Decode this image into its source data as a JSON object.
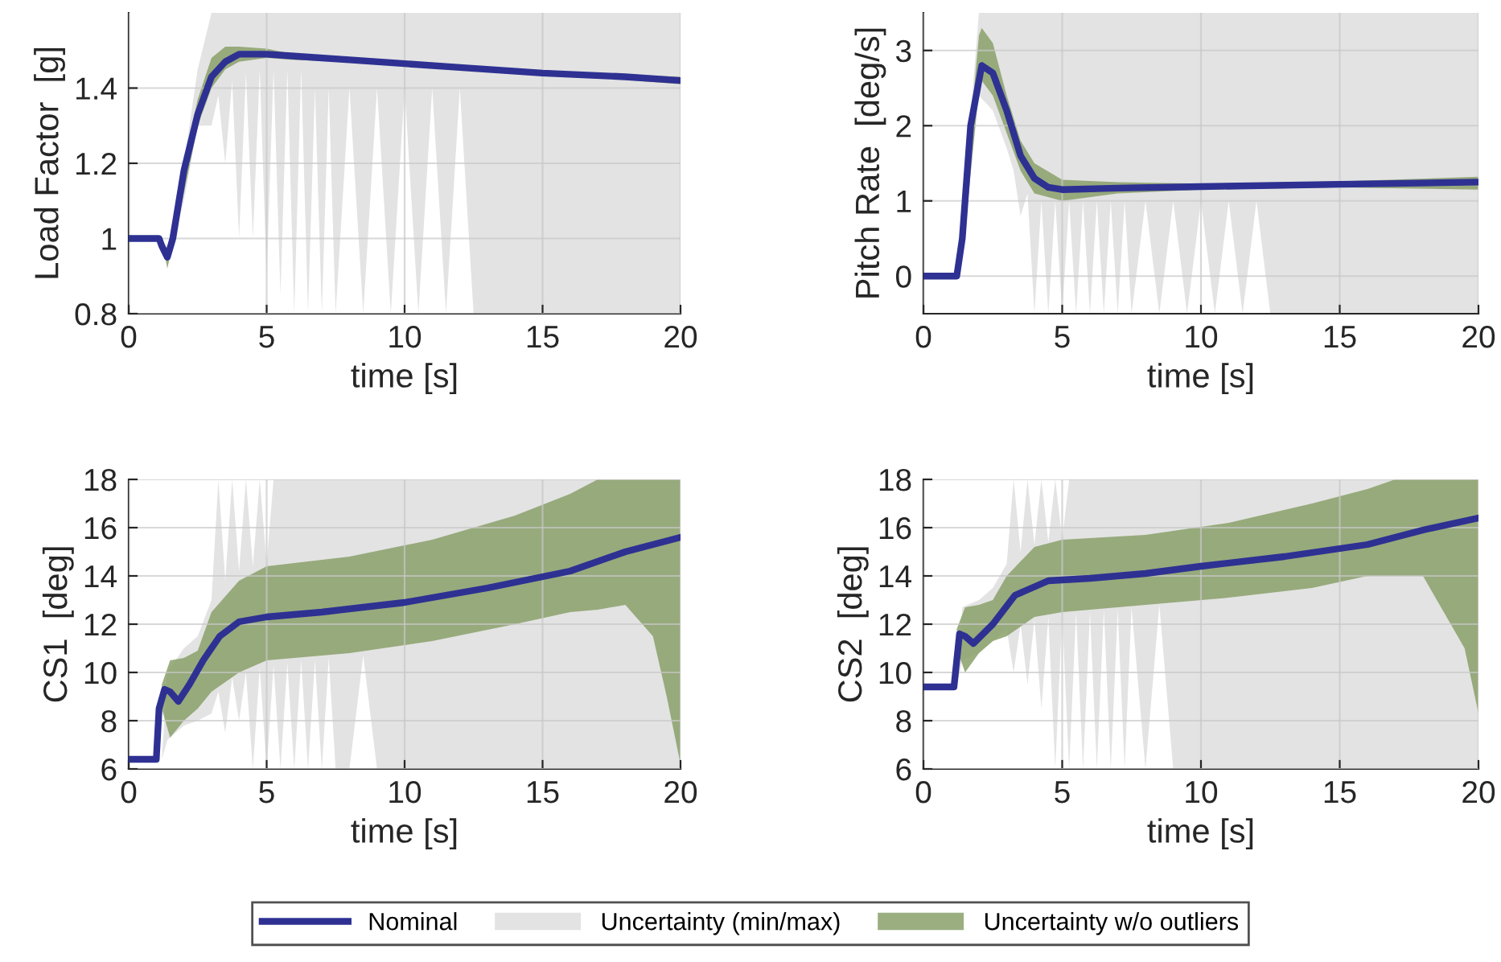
{
  "chart_data": [
    {
      "type": "line",
      "xlabel": "time [s]",
      "ylabel": "Load Factor  [g]",
      "xlim": [
        0,
        20
      ],
      "xticks": [
        0,
        5,
        10,
        15,
        20
      ],
      "ylim": [
        0.8,
        1.6
      ],
      "yticks": [
        0.8,
        1,
        1.2,
        1.4
      ],
      "grid": true,
      "legend": "bottom",
      "series": [
        {
          "name": "Nominal",
          "type": "line",
          "color": "#2e3192",
          "x": [
            0,
            1.1,
            1.2,
            1.4,
            1.6,
            2,
            2.5,
            3,
            3.5,
            4,
            5,
            6,
            8,
            10,
            12,
            15,
            18,
            20
          ],
          "values": [
            1,
            1,
            0.98,
            0.95,
            1.0,
            1.18,
            1.33,
            1.43,
            1.47,
            1.49,
            1.49,
            1.485,
            1.475,
            1.465,
            1.455,
            1.44,
            1.43,
            1.42
          ]
        },
        {
          "name": "Uncertainty (min/max)",
          "type": "line",
          "color": "#e3e3e3",
          "x": [
            0,
            1.2,
            1.4,
            2,
            2.5,
            3,
            3.25,
            3.5,
            3.75,
            4,
            4.25,
            4.5,
            4.75,
            5,
            5.25,
            5.5,
            5.75,
            6,
            6.25,
            6.5,
            6.75,
            7,
            7.25,
            7.5,
            8,
            8.5,
            9,
            9.5,
            10,
            10.5,
            11,
            11.5,
            12,
            12.5,
            13,
            14,
            20
          ],
          "values": [
            null,
            null,
            null,
            null,
            null,
            null,
            null,
            null,
            null,
            null,
            null,
            null,
            null,
            null,
            null,
            null,
            null,
            null,
            null,
            null,
            null,
            null,
            null,
            null,
            null,
            null,
            null,
            null,
            null,
            null,
            null,
            null,
            null,
            null,
            null,
            null,
            null
          ],
          "lower": [
            1,
            1,
            0.93,
            1.1,
            1.3,
            1.3,
            1.38,
            1.2,
            1.42,
            1.0,
            1.44,
            1.0,
            1.45,
            0.9,
            1.45,
            0.85,
            1.45,
            0.8,
            1.45,
            0.8,
            1.4,
            0.8,
            1.4,
            0.8,
            1.4,
            0.8,
            1.4,
            0.8,
            1.4,
            0.8,
            1.4,
            0.8,
            1.4,
            0.8,
            0.8,
            0.8,
            0.8
          ],
          "upper": [
            1,
            1,
            0.97,
            1.2,
            1.45,
            1.6,
            1.6,
            1.6,
            1.6,
            1.6,
            1.6,
            1.6,
            1.6,
            1.6,
            1.6,
            1.6,
            1.6,
            1.6,
            1.6,
            1.6,
            1.6,
            1.6,
            1.6,
            1.6,
            1.6,
            1.6,
            1.6,
            1.6,
            1.6,
            1.6,
            1.6,
            1.6,
            1.6,
            1.6,
            1.6,
            1.6,
            1.6
          ]
        },
        {
          "name": "Uncertainty w/o outliers",
          "type": "line",
          "color": "#8aa06a",
          "x": [
            0,
            1.2,
            1.4,
            2,
            2.5,
            3,
            3.5,
            4,
            5,
            6,
            8,
            10,
            15,
            20
          ],
          "values": [
            null,
            null,
            null,
            null,
            null,
            null,
            null,
            null,
            null,
            null,
            null,
            null,
            null,
            null
          ],
          "lower": [
            1,
            1,
            0.92,
            1.12,
            1.3,
            1.4,
            1.45,
            1.47,
            1.48,
            1.475,
            1.47,
            1.46,
            1.44,
            1.41
          ],
          "upper": [
            1,
            1,
            0.97,
            1.2,
            1.37,
            1.48,
            1.51,
            1.51,
            1.505,
            1.49,
            1.48,
            1.47,
            1.445,
            1.43
          ]
        }
      ]
    },
    {
      "type": "line",
      "xlabel": "time [s]",
      "ylabel": "Pitch Rate  [deg/s]",
      "xlim": [
        0,
        20
      ],
      "xticks": [
        0,
        5,
        10,
        15,
        20
      ],
      "ylim": [
        -0.5,
        3.5
      ],
      "yticks": [
        0,
        1,
        2,
        3
      ],
      "grid": true,
      "series": [
        {
          "type": "line",
          "color": "#2e3192",
          "x": [
            0,
            1.2,
            1.4,
            1.7,
            2.1,
            2.5,
            3,
            3.5,
            4,
            4.5,
            5,
            7,
            10,
            15,
            20
          ],
          "values": [
            0,
            0,
            0.5,
            2.0,
            2.8,
            2.7,
            2.2,
            1.6,
            1.3,
            1.18,
            1.15,
            1.17,
            1.19,
            1.22,
            1.25
          ]
        },
        {
          "type": "line",
          "color": "#e3e3e3",
          "x": [
            0,
            1.2,
            1.4,
            2,
            2.5,
            3,
            3.25,
            3.5,
            3.75,
            4,
            4.25,
            4.5,
            4.75,
            5,
            5.25,
            5.5,
            5.75,
            6,
            6.25,
            6.5,
            6.75,
            7,
            7.25,
            7.5,
            8,
            8.5,
            9,
            9.5,
            10,
            10.5,
            11,
            11.5,
            12,
            12.5,
            13,
            14,
            20
          ],
          "values": [
            null,
            null,
            null,
            null,
            null,
            null,
            null,
            null,
            null,
            null,
            null,
            null,
            null,
            null,
            null,
            null,
            null,
            null,
            null,
            null,
            null,
            null,
            null,
            null,
            null,
            null,
            null,
            null,
            null,
            null,
            null,
            null,
            null,
            null,
            null,
            null,
            null
          ],
          "lower": [
            0,
            0,
            0.3,
            2.4,
            2.2,
            1.7,
            1.4,
            0.8,
            1.1,
            -0.5,
            1.0,
            -0.5,
            1.0,
            -0.5,
            1.0,
            -0.5,
            1.0,
            -0.5,
            1.0,
            -0.5,
            1.0,
            -0.5,
            1.0,
            -0.5,
            1.0,
            -0.5,
            1.0,
            -0.5,
            1.0,
            -0.5,
            1.0,
            -0.5,
            1.0,
            -0.5,
            -0.5,
            -0.5,
            -0.5
          ],
          "upper": [
            0,
            0,
            0.8,
            3.5,
            3.5,
            3.5,
            3.5,
            3.5,
            3.5,
            3.5,
            3.5,
            3.5,
            3.5,
            3.5,
            3.5,
            3.5,
            3.5,
            3.5,
            3.5,
            3.5,
            3.5,
            3.5,
            3.5,
            3.5,
            3.5,
            3.5,
            3.5,
            3.5,
            3.5,
            3.5,
            3.5,
            3.5,
            3.5,
            3.5,
            3.5,
            3.5,
            3.5
          ]
        },
        {
          "type": "line",
          "color": "#8aa06a",
          "x": [
            0,
            1.2,
            1.5,
            2,
            2.1,
            2.5,
            3,
            3.5,
            4,
            5,
            7,
            10,
            15,
            20
          ],
          "values": [
            null,
            null,
            null,
            null,
            null,
            null,
            null,
            null,
            null,
            null,
            null,
            null,
            null,
            null
          ],
          "lower": [
            0,
            0,
            0.6,
            2.5,
            2.6,
            2.4,
            1.9,
            1.4,
            1.1,
            1.0,
            1.1,
            1.15,
            1.18,
            1.15
          ],
          "upper": [
            0,
            0,
            1.2,
            3.2,
            3.3,
            3.1,
            2.4,
            1.8,
            1.5,
            1.28,
            1.25,
            1.23,
            1.26,
            1.32
          ]
        }
      ]
    },
    {
      "type": "line",
      "xlabel": "time [s]",
      "ylabel": "CS1  [deg]",
      "xlim": [
        0,
        20
      ],
      "xticks": [
        0,
        5,
        10,
        15,
        20
      ],
      "ylim": [
        6,
        18
      ],
      "yticks": [
        6,
        8,
        10,
        12,
        14,
        16,
        18
      ],
      "grid": true,
      "series": [
        {
          "type": "line",
          "color": "#2e3192",
          "x": [
            0,
            1,
            1.1,
            1.3,
            1.5,
            1.8,
            2.2,
            2.7,
            3.3,
            4,
            5,
            7,
            10,
            13,
            16,
            18,
            20
          ],
          "values": [
            6.4,
            6.4,
            8.5,
            9.3,
            9.2,
            8.8,
            9.5,
            10.5,
            11.5,
            12.1,
            12.3,
            12.5,
            12.9,
            13.5,
            14.2,
            15.0,
            15.6
          ]
        },
        {
          "type": "line",
          "color": "#e3e3e3",
          "x": [
            0,
            1.2,
            1.4,
            2,
            2.5,
            3,
            3.25,
            3.5,
            3.75,
            4,
            4.25,
            4.5,
            4.75,
            5,
            5.25,
            5.5,
            5.75,
            6,
            6.25,
            6.5,
            6.75,
            7,
            7.25,
            7.5,
            8,
            8.5,
            9,
            9.5,
            10,
            10.5,
            11,
            11.5,
            12,
            12.5,
            13,
            14,
            20
          ],
          "values": [
            null,
            null,
            null,
            null,
            null,
            null,
            null,
            null,
            null,
            null,
            null,
            null,
            null,
            null,
            null,
            null,
            null,
            null,
            null,
            null,
            null,
            null,
            null,
            null,
            null,
            null,
            null,
            null,
            null,
            null,
            null,
            null,
            null,
            null,
            null,
            null,
            null
          ],
          "lower": [
            6.4,
            6.4,
            7.2,
            7.8,
            8.0,
            8.3,
            9.2,
            7.5,
            9.8,
            8.0,
            10.0,
            6,
            10.2,
            6,
            10.3,
            6,
            10.4,
            6,
            10.5,
            6,
            10.5,
            6,
            10.6,
            6,
            6,
            10.7,
            6,
            6,
            6,
            6,
            6,
            6,
            6,
            6,
            6,
            6,
            6
          ],
          "upper": [
            6.4,
            6.4,
            10.0,
            11,
            11.5,
            13.0,
            18,
            13.8,
            18,
            14.2,
            18,
            14.4,
            18,
            14.5,
            18,
            18,
            18,
            18,
            18,
            18,
            18,
            18,
            18,
            18,
            18,
            18,
            18,
            18,
            18,
            18,
            18,
            18,
            18,
            18,
            18,
            18,
            18
          ]
        },
        {
          "type": "line",
          "color": "#8aa06a",
          "x": [
            1.2,
            1.5,
            2,
            2.5,
            3,
            4,
            5,
            8,
            11,
            14,
            16,
            17,
            18,
            19,
            19.5,
            20
          ],
          "values": [
            null,
            null,
            null,
            null,
            null,
            null,
            null,
            null,
            null,
            null,
            null,
            null,
            null,
            null,
            null,
            null
          ],
          "lower": [
            8.5,
            7.3,
            8.0,
            8.5,
            9.2,
            10.0,
            10.5,
            10.8,
            11.3,
            12.0,
            12.5,
            12.6,
            12.8,
            11.5,
            9.0,
            6.2
          ],
          "upper": [
            9.5,
            10.5,
            10.6,
            10.9,
            12.5,
            13.8,
            14.4,
            14.8,
            15.5,
            16.5,
            17.4,
            18,
            18,
            18,
            18,
            18
          ]
        }
      ]
    },
    {
      "type": "line",
      "xlabel": "time [s]",
      "ylabel": "CS2  [deg]",
      "xlim": [
        0,
        20
      ],
      "xticks": [
        0,
        5,
        10,
        15,
        20
      ],
      "ylim": [
        6,
        18
      ],
      "yticks": [
        6,
        8,
        10,
        12,
        14,
        16,
        18
      ],
      "grid": true,
      "series": [
        {
          "type": "line",
          "color": "#2e3192",
          "x": [
            0,
            1.1,
            1.3,
            1.5,
            1.8,
            2.5,
            3.3,
            4.5,
            6,
            8,
            10,
            13,
            16,
            18,
            20
          ],
          "values": [
            9.4,
            9.4,
            11.6,
            11.5,
            11.2,
            12.0,
            13.2,
            13.8,
            13.9,
            14.1,
            14.4,
            14.8,
            15.3,
            15.9,
            16.4
          ]
        },
        {
          "type": "line",
          "color": "#e3e3e3",
          "x": [
            0,
            1.2,
            1.4,
            2,
            2.5,
            3,
            3.25,
            3.5,
            3.75,
            4,
            4.25,
            4.5,
            4.75,
            5,
            5.25,
            5.5,
            5.75,
            6,
            6.25,
            6.5,
            6.75,
            7,
            7.25,
            7.5,
            8,
            8.5,
            9,
            9.5,
            10,
            10.5,
            11,
            11.5,
            12,
            12.5,
            13,
            14,
            20
          ],
          "values": [
            null,
            null,
            null,
            null,
            null,
            null,
            null,
            null,
            null,
            null,
            null,
            null,
            null,
            null,
            null,
            null,
            null,
            null,
            null,
            null,
            null,
            null,
            null,
            null,
            null,
            null,
            null,
            null,
            null,
            null,
            null,
            null,
            null,
            null,
            null,
            null,
            null
          ],
          "lower": [
            9.4,
            9.4,
            10.5,
            10.8,
            11.3,
            11.8,
            10.0,
            12.0,
            9.5,
            12.2,
            8.5,
            12.3,
            6,
            12.4,
            6,
            12.5,
            6,
            12.5,
            6,
            12.6,
            6,
            12.6,
            6,
            12.7,
            6,
            12.8,
            6,
            6,
            6,
            6,
            6,
            6,
            6,
            6,
            6,
            6,
            6
          ],
          "upper": [
            9.4,
            9.4,
            12.7,
            13,
            13.5,
            14.5,
            18,
            15.0,
            18,
            15.3,
            18,
            15.4,
            18,
            15.5,
            18,
            18,
            18,
            18,
            18,
            18,
            18,
            18,
            18,
            18,
            18,
            18,
            18,
            18,
            18,
            18,
            18,
            18,
            18,
            18,
            18,
            18,
            18
          ]
        },
        {
          "type": "line",
          "color": "#8aa06a",
          "x": [
            1.2,
            1.5,
            2,
            2.5,
            3,
            4,
            5,
            8,
            11,
            14,
            16,
            17,
            18,
            19,
            19.5,
            20
          ],
          "values": [
            null,
            null,
            null,
            null,
            null,
            null,
            null,
            null,
            null,
            null,
            null,
            null,
            null,
            null,
            null,
            null
          ],
          "lower": [
            11.0,
            10.0,
            10.8,
            11.3,
            11.5,
            12.3,
            12.5,
            12.8,
            13.1,
            13.5,
            14.0,
            14.0,
            14.0,
            12.0,
            11.0,
            8.3
          ],
          "upper": [
            11.8,
            12.7,
            12.8,
            13.0,
            14.0,
            15.2,
            15.5,
            15.7,
            16.2,
            17.0,
            17.6,
            18,
            18,
            18,
            18,
            18
          ]
        }
      ]
    }
  ]
}
